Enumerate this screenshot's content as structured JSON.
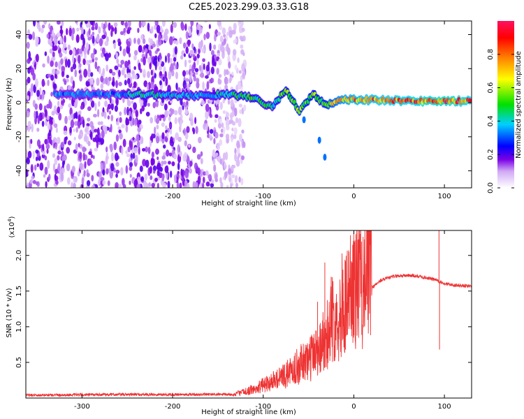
{
  "title": "C2E5.2023.299.03.33.G18",
  "chart_data": [
    {
      "type": "heatmap",
      "name": "spectrogram",
      "xlabel": "Height of straight line (km)",
      "ylabel": "Frequency (Hz)",
      "xlim": [
        -362,
        130
      ],
      "ylim": [
        -50,
        48
      ],
      "xticks": [
        -300,
        -200,
        -100,
        0,
        100
      ],
      "xtick_labels": [
        "-300",
        "-200",
        "-100",
        "0",
        "100"
      ],
      "yticks": [
        -40,
        -20,
        0,
        20,
        40
      ],
      "ytick_labels": [
        "-40",
        "-20",
        "0",
        "20",
        "40"
      ],
      "colorbar": {
        "label": "Normalized spectral amplitude",
        "range": [
          0,
          1
        ],
        "ticks": [
          0.0,
          0.2,
          0.4,
          0.6,
          0.8
        ],
        "tick_labels": [
          "0.0",
          "0.2",
          "0.4",
          "0.6",
          "0.8"
        ],
        "colormap": [
          "#ffffff",
          "#7a00e6",
          "#0000ff",
          "#00d0ff",
          "#00e000",
          "#ffff00",
          "#ff8000",
          "#ff0000",
          "#ff1060"
        ]
      },
      "noise_region": {
        "x_from": -362,
        "x_to": -120
      },
      "ridge": {
        "description_points": [
          {
            "x": -330,
            "y": 5,
            "a": 0.35
          },
          {
            "x": -260,
            "y": 5,
            "a": 0.35
          },
          {
            "x": -240,
            "y": 5,
            "a": 0.45
          },
          {
            "x": -180,
            "y": 4,
            "a": 0.4
          },
          {
            "x": -140,
            "y": 5,
            "a": 0.45
          },
          {
            "x": -110,
            "y": 3,
            "a": 0.5
          },
          {
            "x": -90,
            "y": -3,
            "a": 0.45
          },
          {
            "x": -75,
            "y": 8,
            "a": 0.55
          },
          {
            "x": -60,
            "y": -5,
            "a": 0.6
          },
          {
            "x": -45,
            "y": 5,
            "a": 0.55
          },
          {
            "x": -30,
            "y": -2,
            "a": 0.6
          },
          {
            "x": -15,
            "y": 2,
            "a": 0.75
          },
          {
            "x": 0,
            "y": 2,
            "a": 0.8
          },
          {
            "x": 50,
            "y": 1,
            "a": 0.85
          },
          {
            "x": 100,
            "y": 1,
            "a": 0.9
          },
          {
            "x": 130,
            "y": 1,
            "a": 0.85
          }
        ],
        "branch": [
          {
            "x": -55,
            "y": -10
          },
          {
            "x": -38,
            "y": -22
          },
          {
            "x": -32,
            "y": -32
          }
        ]
      }
    },
    {
      "type": "line",
      "name": "snr",
      "xlabel": "Height of straight line (km)",
      "ylabel": "SNR (10 * v/v)",
      "multiplier_label": "(x10",
      "multiplier_exp": "4",
      "xlim": [
        -362,
        130
      ],
      "ylim": [
        0,
        2.35
      ],
      "xticks": [
        -300,
        -200,
        -100,
        0,
        100
      ],
      "xtick_labels": [
        "-300",
        "-200",
        "-100",
        "0",
        "100"
      ],
      "yticks": [
        0.5,
        1.0,
        1.5,
        2.0
      ],
      "ytick_labels": [
        "0.5",
        "1.0",
        "1.5",
        "2.0"
      ],
      "color": "#ee3333",
      "envelope": [
        {
          "x": -362,
          "y": 0.04
        },
        {
          "x": -250,
          "y": 0.05
        },
        {
          "x": -200,
          "y": 0.05
        },
        {
          "x": -130,
          "y": 0.05
        },
        {
          "x": -110,
          "y": 0.1
        },
        {
          "x": -90,
          "y": 0.2
        },
        {
          "x": -70,
          "y": 0.3
        },
        {
          "x": -50,
          "y": 0.45
        },
        {
          "x": -35,
          "y": 0.65
        },
        {
          "x": -25,
          "y": 0.85
        },
        {
          "x": -15,
          "y": 1.0
        },
        {
          "x": -5,
          "y": 1.2
        },
        {
          "x": 5,
          "y": 1.35
        },
        {
          "x": 20,
          "y": 1.55
        },
        {
          "x": 30,
          "y": 1.65
        },
        {
          "x": 45,
          "y": 1.71
        },
        {
          "x": 60,
          "y": 1.72
        },
        {
          "x": 75,
          "y": 1.7
        },
        {
          "x": 90,
          "y": 1.66
        },
        {
          "x": 100,
          "y": 1.6
        },
        {
          "x": 115,
          "y": 1.58
        },
        {
          "x": 130,
          "y": 1.57
        }
      ],
      "spikes": [
        {
          "x": -58,
          "y": 0.62
        },
        {
          "x": -40,
          "y": 1.35
        },
        {
          "x": -32,
          "y": 1.9
        },
        {
          "x": -25,
          "y": 1.7
        },
        {
          "x": -12,
          "y": 1.8
        },
        {
          "x": 94,
          "y": 2.35
        },
        {
          "x": 94.6,
          "y": 0.68
        }
      ]
    }
  ]
}
